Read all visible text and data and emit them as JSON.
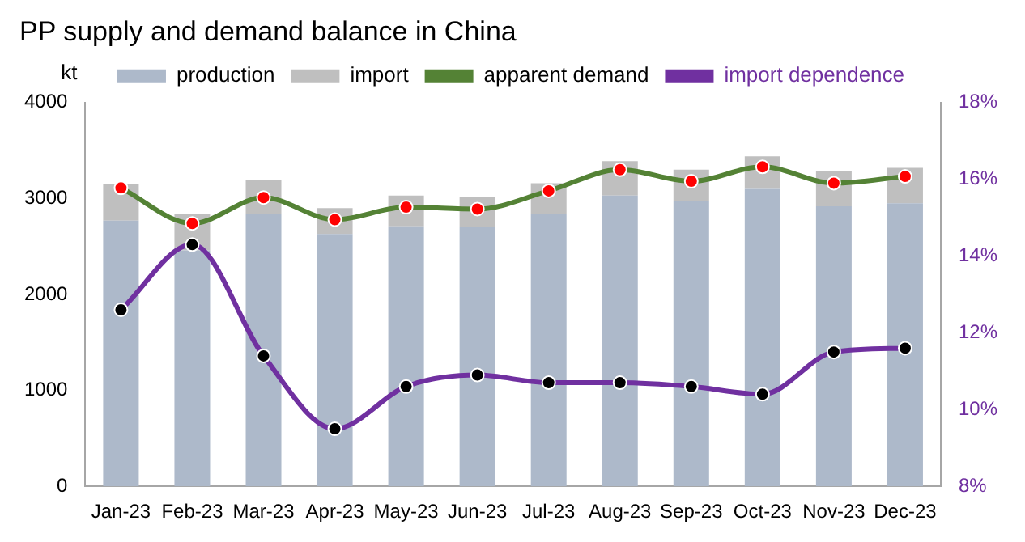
{
  "chart_data": {
    "type": "bar",
    "title": "PP supply and demand balance in China",
    "ylabel": "kt",
    "categories": [
      "Jan-23",
      "Feb-23",
      "Mar-23",
      "Apr-23",
      "May-23",
      "Jun-23",
      "Jul-23",
      "Aug-23",
      "Sep-23",
      "Oct-23",
      "Nov-23",
      "Dec-23"
    ],
    "stacked": true,
    "series": [
      {
        "name": "production",
        "color": "#adb9ca",
        "values": [
          2770,
          2460,
          2840,
          2630,
          2710,
          2700,
          2840,
          3030,
          2970,
          3100,
          2920,
          2950
        ]
      },
      {
        "name": "import",
        "color": "#bfbfbf",
        "values": [
          380,
          380,
          350,
          270,
          320,
          320,
          320,
          360,
          330,
          340,
          370,
          370
        ]
      },
      {
        "name": "apparent demand",
        "type": "line",
        "color": "#548235",
        "colors": [
          "#ff0000",
          "#ff0000",
          "#ff0000",
          "#ff0000",
          "#ff0000",
          "#ff0000",
          "#ff0000",
          "#ff0000",
          "#ff0000",
          "#ff0000",
          "#ff0000",
          "#ff0000"
        ],
        "values": [
          3110,
          2740,
          3010,
          2780,
          2910,
          2890,
          3080,
          3300,
          3180,
          3330,
          3160,
          3230
        ]
      },
      {
        "name": "import dependence",
        "type": "line",
        "axis": "y2",
        "color": "#7030a0",
        "colors": [
          "#000000",
          "#000000",
          "#000000",
          "#000000",
          "#000000",
          "#000000",
          "#000000",
          "#000000",
          "#000000",
          "#000000",
          "#000000",
          "#000000"
        ],
        "values": [
          12.6,
          14.3,
          11.4,
          9.5,
          10.6,
          10.9,
          10.7,
          10.7,
          10.6,
          10.4,
          11.5,
          11.6
        ]
      }
    ],
    "ylim": [
      0,
      4000
    ],
    "yticks": [
      0,
      1000,
      2000,
      3000,
      4000
    ],
    "y2lim": [
      8,
      18
    ],
    "y2ticks": [
      {
        "value": 8,
        "label": "8%"
      },
      {
        "value": 10,
        "label": "10%"
      },
      {
        "value": 12,
        "label": "12%"
      },
      {
        "value": 14,
        "label": "14%"
      },
      {
        "value": 16,
        "label": "16%"
      },
      {
        "value": 18,
        "label": "18%"
      }
    ],
    "grid": false,
    "legend": "top",
    "marker": "circle"
  }
}
